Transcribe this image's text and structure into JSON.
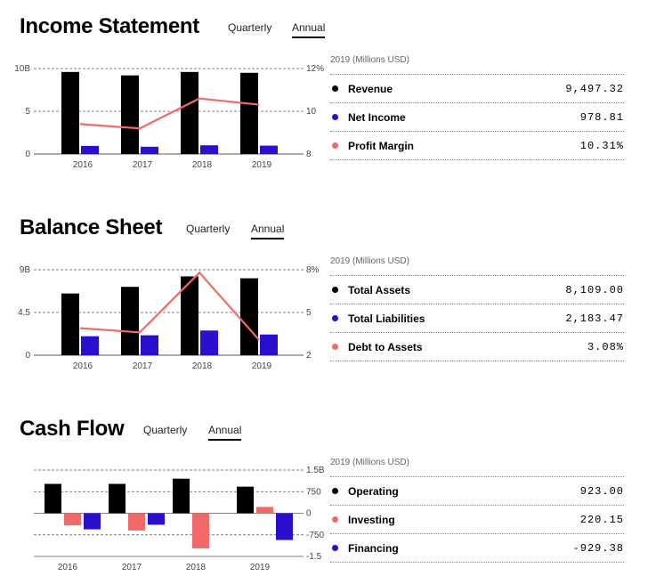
{
  "colors": {
    "primary": "#000000",
    "secondary": "#2a0fcf",
    "accent": "#f06a6a",
    "grid": "#555555"
  },
  "sections": [
    {
      "title": "Income Statement",
      "tabs": [
        "Quarterly",
        "Annual"
      ],
      "active_tab": "Annual",
      "table_header": "2019 (Millions USD)",
      "rows": [
        {
          "label": "Revenue",
          "value": "9,497.32",
          "color": "#000000"
        },
        {
          "label": "Net Income",
          "value": "978.81",
          "color": "#2a0fcf"
        },
        {
          "label": "Profit Margin",
          "value": "10.31%",
          "color": "#f06a6a"
        }
      ]
    },
    {
      "title": "Balance Sheet",
      "tabs": [
        "Quarterly",
        "Annual"
      ],
      "active_tab": "Annual",
      "table_header": "2019 (Millions USD)",
      "rows": [
        {
          "label": "Total Assets",
          "value": "8,109.00",
          "color": "#000000"
        },
        {
          "label": "Total Liabilities",
          "value": "2,183.47",
          "color": "#2a0fcf"
        },
        {
          "label": "Debt to Assets",
          "value": "3.08%",
          "color": "#f06a6a"
        }
      ]
    },
    {
      "title": "Cash Flow",
      "tabs": [
        "Quarterly",
        "Annual"
      ],
      "active_tab": "Annual",
      "table_header": "2019 (Millions USD)",
      "rows": [
        {
          "label": "Operating",
          "value": "923.00",
          "color": "#000000"
        },
        {
          "label": "Investing",
          "value": "220.15",
          "color": "#f06a6a"
        },
        {
          "label": "Financing",
          "value": "-929.38",
          "color": "#2a0fcf"
        }
      ]
    }
  ],
  "chart_data": [
    {
      "type": "bar",
      "categories": [
        "2016",
        "2017",
        "2018",
        "2019"
      ],
      "series": [
        {
          "name": "Revenue",
          "kind": "bar",
          "axis": "left",
          "color": "#000000",
          "values": [
            9.6,
            9.2,
            9.6,
            9.5
          ]
        },
        {
          "name": "Net Income",
          "kind": "bar",
          "axis": "left",
          "color": "#2a0fcf",
          "values": [
            0.95,
            0.85,
            1.02,
            0.98
          ]
        },
        {
          "name": "Profit Margin",
          "kind": "line",
          "axis": "right",
          "color": "#f06a6a",
          "values": [
            9.4,
            9.2,
            10.6,
            10.31
          ]
        }
      ],
      "left_axis": {
        "min": 0,
        "max": 10,
        "ticks": [
          "0",
          "5",
          "10B"
        ]
      },
      "right_axis": {
        "min": 8,
        "max": 12,
        "ticks": [
          "8",
          "10",
          "12%"
        ]
      }
    },
    {
      "type": "bar",
      "categories": [
        "2016",
        "2017",
        "2018",
        "2019"
      ],
      "series": [
        {
          "name": "Total Assets",
          "kind": "bar",
          "axis": "left",
          "color": "#000000",
          "values": [
            6.5,
            7.2,
            8.3,
            8.1
          ]
        },
        {
          "name": "Total Liabilities",
          "kind": "bar",
          "axis": "left",
          "color": "#2a0fcf",
          "values": [
            2.0,
            2.1,
            2.6,
            2.18
          ]
        },
        {
          "name": "Debt to Assets",
          "kind": "line",
          "axis": "right",
          "color": "#f06a6a",
          "values": [
            3.9,
            3.6,
            7.8,
            3.08
          ]
        }
      ],
      "left_axis": {
        "min": 0,
        "max": 9,
        "ticks": [
          "0",
          "4.5",
          "9B"
        ]
      },
      "right_axis": {
        "min": 2,
        "max": 8,
        "ticks": [
          "2",
          "5",
          "8%"
        ]
      }
    },
    {
      "type": "bar",
      "categories": [
        "2016",
        "2017",
        "2018",
        "2019"
      ],
      "series": [
        {
          "name": "Operating",
          "kind": "bar",
          "color": "#000000",
          "values": [
            1020,
            1020,
            1200,
            923
          ]
        },
        {
          "name": "Investing",
          "kind": "bar",
          "color": "#f06a6a",
          "values": [
            -420,
            -600,
            -1220,
            220.15
          ]
        },
        {
          "name": "Financing",
          "kind": "bar",
          "color": "#2a0fcf",
          "values": [
            -560,
            -400,
            0,
            -929.38
          ]
        }
      ],
      "right_axis": {
        "min": -1500,
        "max": 1500,
        "ticks": [
          "-1.5",
          "-750",
          "0",
          "750",
          "1.5B"
        ]
      }
    }
  ]
}
